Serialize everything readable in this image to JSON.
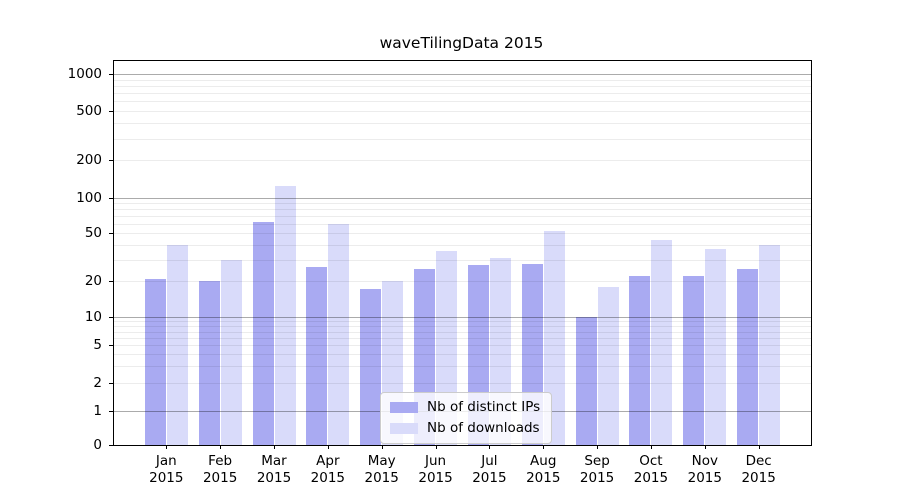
{
  "chart_data": {
    "type": "bar",
    "title": "waveTilingData 2015",
    "categories": [
      "Jan 2015",
      "Feb 2015",
      "Mar 2015",
      "Apr 2015",
      "May 2015",
      "Jun 2015",
      "Jul 2015",
      "Aug 2015",
      "Sep 2015",
      "Oct 2015",
      "Nov 2015",
      "Dec 2015"
    ],
    "x_tick_month": [
      "Jan",
      "Feb",
      "Mar",
      "Apr",
      "May",
      "Jun",
      "Jul",
      "Aug",
      "Sep",
      "Oct",
      "Nov",
      "Dec"
    ],
    "x_tick_year": "2015",
    "series": [
      {
        "name": "Nb of distinct IPs",
        "color": "#a9aaf2",
        "values": [
          21,
          20,
          62,
          26,
          17,
          25,
          27,
          28,
          10,
          22,
          22,
          25
        ]
      },
      {
        "name": "Nb of downloads",
        "color": "#d9dbfa",
        "values": [
          40,
          30,
          124,
          60,
          20,
          36,
          31,
          52,
          18,
          44,
          37,
          40
        ]
      }
    ],
    "ylabel": "",
    "xlabel": "",
    "y_scale": "log-like (linear 0-1, log decades above)",
    "y_ticks": [
      0,
      1,
      2,
      5,
      10,
      20,
      50,
      100,
      200,
      500,
      1000
    ],
    "y_major_gridlines": [
      1,
      10,
      100,
      1000
    ],
    "y_minor_gridlines": [
      2,
      3,
      4,
      5,
      6,
      7,
      8,
      9,
      20,
      30,
      40,
      50,
      60,
      70,
      80,
      90,
      200,
      300,
      400,
      500,
      600,
      700,
      800,
      900
    ],
    "ylim": [
      0,
      1230
    ],
    "grid": "horizontal major+minor, drawn over bars",
    "legend_position": "inside lower-center"
  },
  "legend": {
    "items": [
      {
        "label": "Nb of distinct IPs"
      },
      {
        "label": "Nb of downloads"
      }
    ]
  },
  "colors": {
    "background": "#ffffff",
    "bar_dark": "#a9aaf2",
    "bar_light": "#d9dbfa",
    "spine": "#000000",
    "major_grid": "#ababab",
    "minor_grid": "#ececec",
    "legend_border": "#cccccc",
    "text": "#000000"
  }
}
